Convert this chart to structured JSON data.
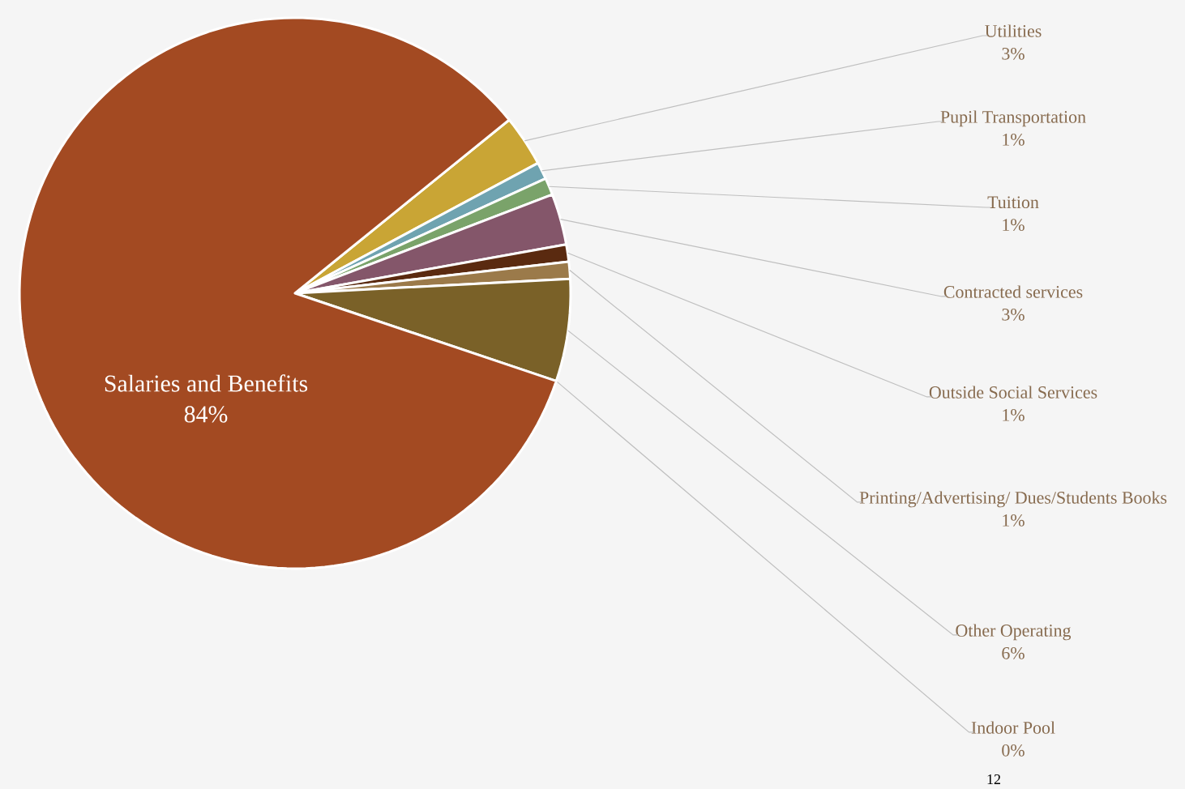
{
  "chart_data": {
    "type": "pie",
    "categories": [
      "Utilities",
      "Pupil Transportation",
      "Tuition",
      "Contracted services",
      "Outside Social Services",
      "Printing/Advertising/ Dues/Students Books",
      "Other Operating",
      "Indoor Pool",
      "Salaries and Benefits"
    ],
    "values": [
      3,
      1,
      1,
      3,
      1,
      1,
      6,
      0,
      84
    ],
    "value_labels": [
      "3%",
      "1%",
      "1%",
      "3%",
      "1%",
      "1%",
      "6%",
      "0%",
      "84%"
    ],
    "colors": [
      "#c9a535",
      "#6fa3b0",
      "#7aa36a",
      "#84566a",
      "#5a2a10",
      "#9b7a4a",
      "#7a6128",
      "#4a6a8a",
      "#a34a22"
    ],
    "annotations": [
      "12"
    ]
  }
}
